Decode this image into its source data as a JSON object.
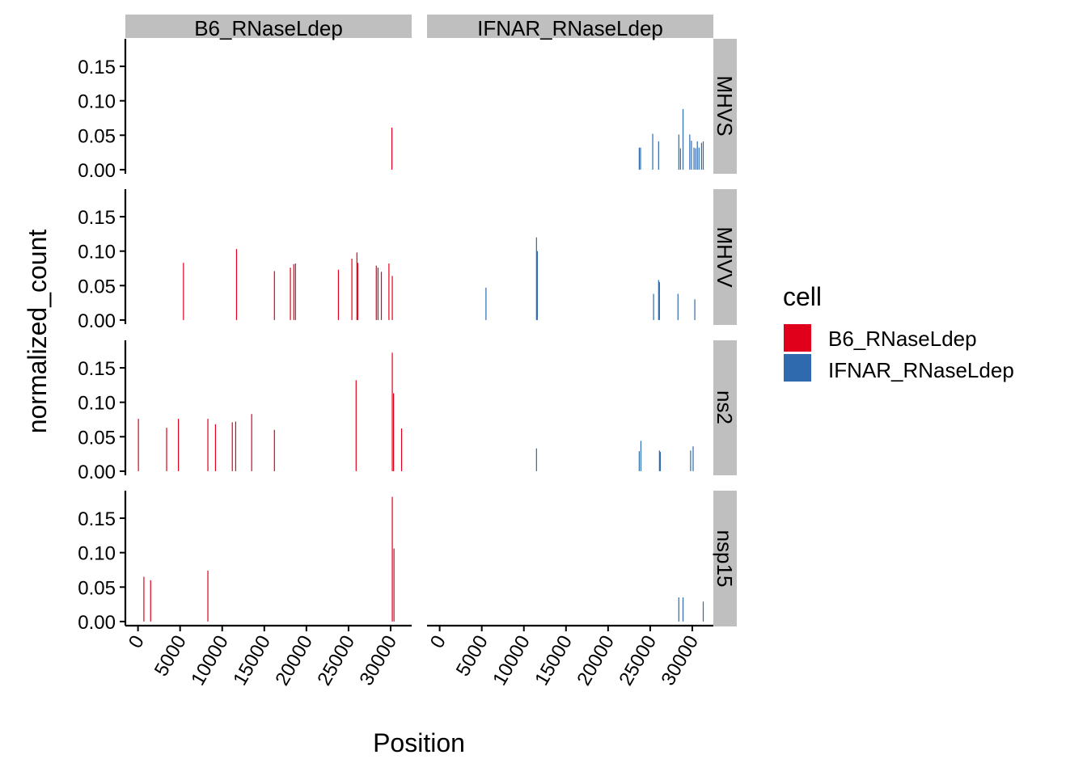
{
  "chart_data": {
    "type": "bar",
    "xlabel": "Position",
    "ylabel": "normalized_count",
    "xlim": [
      -1500,
      32500
    ],
    "ylim": [
      -0.006,
      0.19
    ],
    "x_ticks": [
      0,
      5000,
      10000,
      15000,
      20000,
      25000,
      30000
    ],
    "x_tick_labels": [
      "0",
      "5000",
      "10000",
      "15000",
      "20000",
      "25000",
      "30000"
    ],
    "y_ticks": [
      0,
      0.05,
      0.1,
      0.15
    ],
    "y_tick_labels": [
      "0.00",
      "0.05",
      "0.10",
      "0.15"
    ],
    "columns": [
      "B6_RNaseLdep",
      "IFNAR_RNaseLdep"
    ],
    "rows": [
      "MHVS",
      "MHVV",
      "ns2",
      "nsp15"
    ],
    "legend": {
      "title": "cell",
      "position": "right",
      "entries": [
        {
          "name": "B6_RNaseLdep",
          "color": "#e0001b"
        },
        {
          "name": "IFNAR_RNaseLdep",
          "color": "#2e6aad"
        }
      ]
    },
    "panels": [
      {
        "row": "MHVS",
        "column": "B6_RNaseLdep",
        "bars": [
          [
            30150,
            0.061
          ]
        ]
      },
      {
        "row": "MHVS",
        "column": "IFNAR_RNaseLdep",
        "bars": [
          [
            23700,
            0.032
          ],
          [
            23850,
            0.032
          ],
          [
            25300,
            0.052
          ],
          [
            26000,
            0.041
          ],
          [
            28400,
            0.051
          ],
          [
            28600,
            0.031
          ],
          [
            28900,
            0.088
          ],
          [
            29700,
            0.051
          ],
          [
            29900,
            0.042
          ],
          [
            30200,
            0.032
          ],
          [
            30400,
            0.031
          ],
          [
            30600,
            0.041
          ],
          [
            30800,
            0.032
          ],
          [
            31100,
            0.039
          ],
          [
            31300,
            0.041
          ]
        ]
      },
      {
        "row": "MHVV",
        "column": "B6_RNaseLdep",
        "bars": [
          [
            5400,
            0.083
          ],
          [
            11700,
            0.103
          ],
          [
            16200,
            0.071
          ],
          [
            18100,
            0.076
          ],
          [
            18500,
            0.081
          ],
          [
            18700,
            0.082
          ],
          [
            23800,
            0.073
          ],
          [
            25400,
            0.089
          ],
          [
            26000,
            0.098
          ],
          [
            26100,
            0.083
          ],
          [
            28300,
            0.079
          ],
          [
            28500,
            0.076
          ],
          [
            28900,
            0.07
          ],
          [
            29800,
            0.082
          ],
          [
            30200,
            0.064
          ]
        ]
      },
      {
        "row": "MHVV",
        "column": "IFNAR_RNaseLdep",
        "bars": [
          [
            5500,
            0.047
          ],
          [
            11500,
            0.12
          ],
          [
            11600,
            0.1
          ],
          [
            25400,
            0.038
          ],
          [
            26000,
            0.058
          ],
          [
            26100,
            0.055
          ],
          [
            28300,
            0.038
          ],
          [
            30300,
            0.03
          ]
        ]
      },
      {
        "row": "ns2",
        "column": "B6_RNaseLdep",
        "bars": [
          [
            50,
            0.076
          ],
          [
            3400,
            0.063
          ],
          [
            4800,
            0.076
          ],
          [
            8300,
            0.076
          ],
          [
            9200,
            0.068
          ],
          [
            11200,
            0.071
          ],
          [
            11600,
            0.072
          ],
          [
            13500,
            0.083
          ],
          [
            16200,
            0.06
          ],
          [
            25900,
            0.132
          ],
          [
            30200,
            0.172
          ],
          [
            30350,
            0.113
          ],
          [
            31300,
            0.062
          ]
        ]
      },
      {
        "row": "ns2",
        "column": "IFNAR_RNaseLdep",
        "bars": [
          [
            11500,
            0.033
          ],
          [
            23700,
            0.029
          ],
          [
            23900,
            0.044
          ],
          [
            26100,
            0.03
          ],
          [
            26200,
            0.028
          ],
          [
            29800,
            0.03
          ],
          [
            30100,
            0.036
          ]
        ]
      },
      {
        "row": "nsp15",
        "column": "B6_RNaseLdep",
        "bars": [
          [
            700,
            0.065
          ],
          [
            1500,
            0.06
          ],
          [
            8300,
            0.074
          ],
          [
            30200,
            0.181
          ],
          [
            30400,
            0.106
          ]
        ]
      },
      {
        "row": "nsp15",
        "column": "IFNAR_RNaseLdep",
        "bars": [
          [
            28400,
            0.035
          ],
          [
            28900,
            0.035
          ],
          [
            31300,
            0.029
          ]
        ]
      }
    ]
  }
}
